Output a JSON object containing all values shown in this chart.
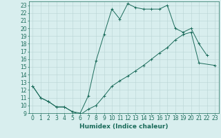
{
  "xlabel": "Humidex (Indice chaleur)",
  "xlim": [
    -0.5,
    23.5
  ],
  "ylim": [
    9,
    23.5
  ],
  "yticks": [
    9,
    10,
    11,
    12,
    13,
    14,
    15,
    16,
    17,
    18,
    19,
    20,
    21,
    22,
    23
  ],
  "xticks": [
    0,
    1,
    2,
    3,
    4,
    5,
    6,
    7,
    8,
    9,
    10,
    11,
    12,
    13,
    14,
    15,
    16,
    17,
    18,
    19,
    20,
    21,
    22,
    23
  ],
  "line1_x": [
    0,
    1,
    2,
    3,
    4,
    5,
    6,
    7,
    8,
    9,
    10,
    11,
    12,
    13,
    14,
    15,
    16,
    17,
    18,
    19,
    20,
    21,
    22
  ],
  "line1_y": [
    12.5,
    11.0,
    10.5,
    9.8,
    9.8,
    9.2,
    9.0,
    11.2,
    15.8,
    19.2,
    22.5,
    21.2,
    23.2,
    22.7,
    22.5,
    22.5,
    22.5,
    23.0,
    20.0,
    19.5,
    20.0,
    18.0,
    16.5
  ],
  "line2_x": [
    0,
    1,
    2,
    3,
    4,
    5,
    6,
    7,
    8,
    9,
    10,
    11,
    12,
    13,
    14,
    15,
    16,
    17,
    18,
    19,
    20,
    21,
    23
  ],
  "line2_y": [
    12.5,
    11.0,
    10.5,
    9.8,
    9.8,
    9.2,
    8.8,
    9.5,
    10.0,
    11.2,
    12.5,
    13.2,
    13.8,
    14.5,
    15.2,
    16.0,
    16.8,
    17.5,
    18.5,
    19.2,
    19.5,
    15.5,
    15.2
  ],
  "line_color": "#1a6b5a",
  "bg_color": "#d8eeee",
  "grid_color": "#b8d4d4",
  "label_fontsize": 6.5,
  "tick_fontsize": 5.5
}
